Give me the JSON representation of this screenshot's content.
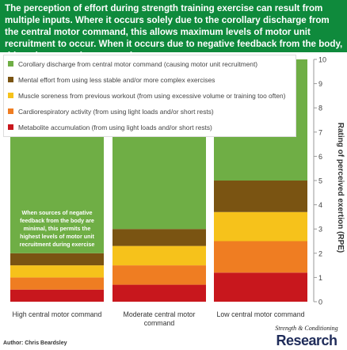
{
  "header": {
    "title": "The perception of effort during strength training exercise can result from multiple inputs. Where it occurs solely due to the corollary discharge from the central motor command, this allows maximum levels of motor unit recruitment to occur. When it occurs due to negative feedback from the body, this reduces maximum recruitment.",
    "background": "#0f8a3c"
  },
  "annotation": "When sources of negative feedback from the body are minimal, this permits the highest levels of motor unit recruitment during exercise",
  "author": "Author: Chris Beardsley",
  "logo": {
    "top": "Strength & Conditioning",
    "main": "Research"
  },
  "chart_data": {
    "type": "bar",
    "stacked": true,
    "categories": [
      "High central motor command",
      "Moderate central motor command",
      "Low central motor command"
    ],
    "ylabel": "Rating of perceived exertion (RPE)",
    "ylim": [
      0,
      10
    ],
    "yticks": [
      0,
      1,
      2,
      3,
      4,
      5,
      6,
      7,
      8,
      9,
      10
    ],
    "legend_position": "top-left",
    "series": [
      {
        "name": "Metabolite accumulation (from using light loads and/or short rests)",
        "color": "#c8171d",
        "values": [
          0.5,
          0.7,
          1.2
        ]
      },
      {
        "name": "Cardiorespiratory activity (from using light loads and/or short rests)",
        "color": "#ef7d22",
        "values": [
          0.5,
          0.8,
          1.3
        ]
      },
      {
        "name": "Muscle soreness from previous workout (from using excessive volume or training too often)",
        "color": "#f6c21b",
        "values": [
          0.5,
          0.8,
          1.2
        ]
      },
      {
        "name": "Mental effort from using less stable and/or more complex exercises",
        "color": "#7a5412",
        "values": [
          0.5,
          0.7,
          1.3
        ]
      },
      {
        "name": "Corollary discharge from central motor command (causing motor unit recruitment)",
        "color": "#6fae45",
        "values": [
          8.0,
          7.0,
          5.0
        ]
      }
    ]
  }
}
